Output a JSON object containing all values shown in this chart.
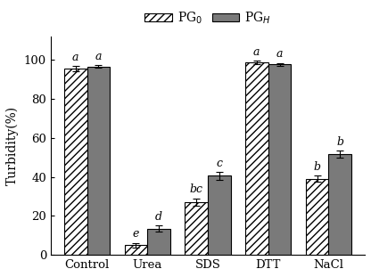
{
  "categories": [
    "Control",
    "Urea",
    "SDS",
    "DTT",
    "NaCl"
  ],
  "PG0_values": [
    95.5,
    5.0,
    27.0,
    98.5,
    39.0
  ],
  "PGH_values": [
    96.5,
    13.5,
    40.5,
    97.5,
    51.5
  ],
  "PG0_errors": [
    1.2,
    1.2,
    2.0,
    1.0,
    1.5
  ],
  "PGH_errors": [
    0.8,
    1.5,
    2.0,
    0.8,
    1.8
  ],
  "PG0_labels": [
    "a",
    "e",
    "bc",
    "a",
    "b"
  ],
  "PGH_labels": [
    "a",
    "d",
    "c",
    "a",
    "b"
  ],
  "bar_width": 0.38,
  "hatch_pattern": "////",
  "PG0_facecolor": "#ffffff",
  "PGH_facecolor": "#7a7a7a",
  "edge_color": "#000000",
  "ylabel": "Turbidity(%)",
  "ylim": [
    0,
    112
  ],
  "yticks": [
    0,
    20,
    40,
    60,
    80,
    100
  ],
  "legend_PG0": "PG$_0$",
  "legend_PGH": "PG$_H$",
  "label_fontsize": 10,
  "tick_fontsize": 9.5,
  "annotation_fontsize": 9,
  "legend_fontsize": 10
}
